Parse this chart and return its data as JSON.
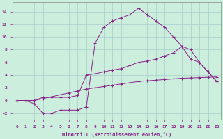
{
  "title": "",
  "xlabel": "Windchill (Refroidissement éolien,°C)",
  "background_color": "#cceedd",
  "grid_color": "#aacccc",
  "line_color": "#882288",
  "xlim": [
    -0.5,
    23.5
  ],
  "ylim": [
    -3,
    15.5
  ],
  "x_ticks": [
    0,
    1,
    2,
    3,
    4,
    5,
    6,
    7,
    8,
    9,
    10,
    11,
    12,
    13,
    14,
    15,
    16,
    17,
    18,
    19,
    20,
    21,
    22,
    23
  ],
  "yticks": [
    -2,
    0,
    2,
    4,
    6,
    8,
    10,
    12,
    14
  ],
  "series1_x": [
    0,
    1,
    2,
    3,
    4,
    5,
    6,
    7,
    8,
    9,
    10,
    11,
    12,
    13,
    14,
    15,
    16,
    17,
    18,
    19,
    20,
    21,
    22,
    23
  ],
  "series1_y": [
    0,
    0,
    0,
    0.3,
    0.6,
    0.9,
    1.2,
    1.5,
    1.8,
    2.0,
    2.2,
    2.4,
    2.6,
    2.8,
    3.0,
    3.1,
    3.2,
    3.3,
    3.4,
    3.5,
    3.55,
    3.6,
    3.65,
    3.7
  ],
  "series2_x": [
    0,
    1,
    2,
    3,
    4,
    5,
    6,
    7,
    8,
    9,
    10,
    11,
    12,
    13,
    14,
    15,
    16,
    17,
    18,
    19,
    20,
    21,
    22,
    23
  ],
  "series2_y": [
    0,
    0,
    -0.5,
    -2,
    -2,
    -1.5,
    -1.5,
    -1.5,
    -1,
    9,
    11.5,
    12.5,
    13,
    13.5,
    14.5,
    13.5,
    12.5,
    11.5,
    10,
    8.5,
    6.5,
    6,
    4.5,
    3
  ],
  "series3_x": [
    0,
    1,
    2,
    3,
    4,
    5,
    6,
    7,
    8,
    9,
    10,
    11,
    12,
    13,
    14,
    15,
    16,
    17,
    18,
    19,
    20,
    21,
    22,
    23
  ],
  "series3_y": [
    0,
    0,
    0,
    0.5,
    0.5,
    0.5,
    0.5,
    0.8,
    4,
    4.2,
    4.5,
    4.8,
    5.0,
    5.5,
    6.0,
    6.2,
    6.5,
    7.0,
    7.5,
    8.5,
    8,
    6,
    4.5,
    3
  ]
}
